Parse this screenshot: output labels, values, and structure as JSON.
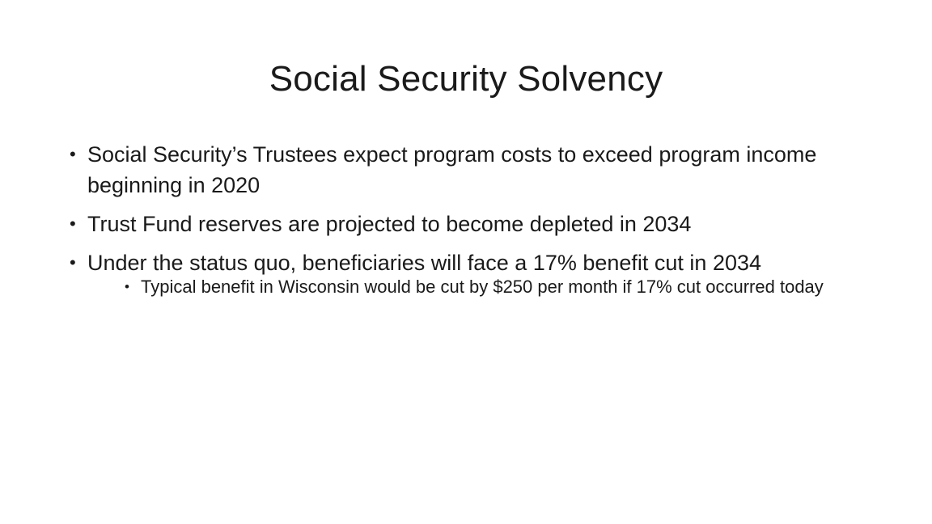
{
  "slide": {
    "title": "Social Security Solvency",
    "bullets": [
      "Social Security’s Trustees expect program costs to exceed program income beginning in 2020",
      "Trust Fund reserves are projected to become depleted in 2034",
      "Under the status quo, beneficiaries will face a 17% benefit cut in 2034"
    ],
    "sub_bullets": [
      "Typical benefit in Wisconsin would be cut by $250 per month if 17% cut occurred today"
    ],
    "bullet_glyph": "•"
  }
}
